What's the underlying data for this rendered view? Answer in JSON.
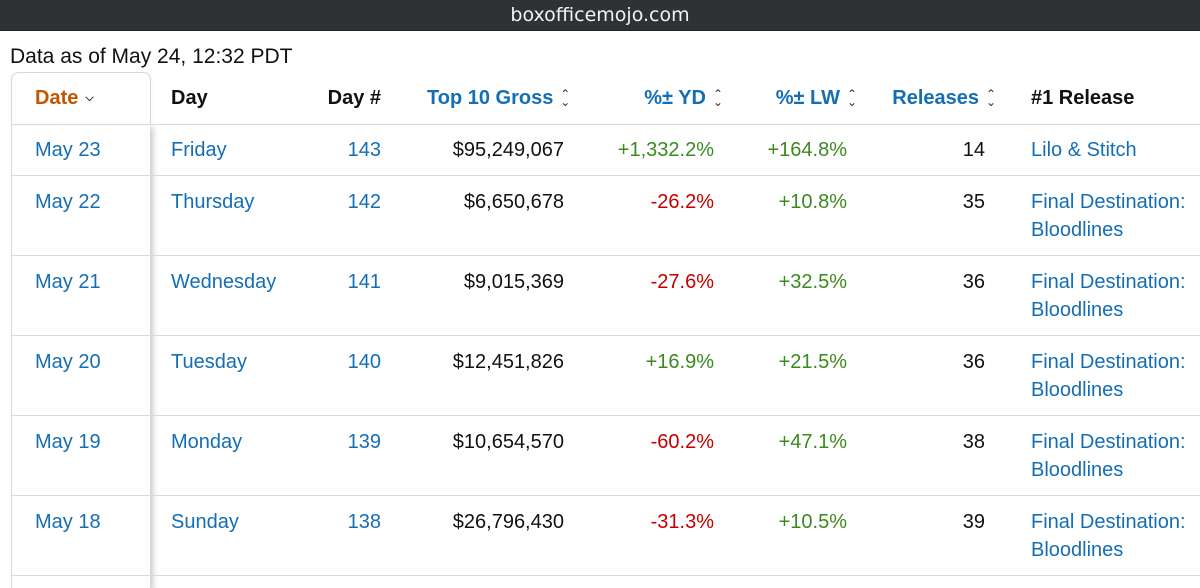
{
  "browser": {
    "url": "boxofficemojo.com"
  },
  "page": {
    "data_as_of": "Data as of May 24, 12:32 PDT"
  },
  "table": {
    "columns": [
      {
        "key": "date",
        "label": "Date"
      },
      {
        "key": "day",
        "label": "Day"
      },
      {
        "key": "day_num",
        "label": "Day #"
      },
      {
        "key": "gross",
        "label": "Top 10 Gross"
      },
      {
        "key": "yd",
        "label": "%± YD"
      },
      {
        "key": "lw",
        "label": "%± LW"
      },
      {
        "key": "releases",
        "label": "Releases"
      },
      {
        "key": "release",
        "label": "#1 Release"
      }
    ],
    "rows": [
      {
        "date": "May 23",
        "day": "Friday",
        "day_num": "143",
        "gross": "$95,249,067",
        "yd": "+1,332.2%",
        "lw": "+164.8%",
        "releases": "14",
        "release": "Lilo & Stitch"
      },
      {
        "date": "May 22",
        "day": "Thursday",
        "day_num": "142",
        "gross": "$6,650,678",
        "yd": "-26.2%",
        "lw": "+10.8%",
        "releases": "35",
        "release": "Final Destination: Bloodlines"
      },
      {
        "date": "May 21",
        "day": "Wednesday",
        "day_num": "141",
        "gross": "$9,015,369",
        "yd": "-27.6%",
        "lw": "+32.5%",
        "releases": "36",
        "release": "Final Destination: Bloodlines"
      },
      {
        "date": "May 20",
        "day": "Tuesday",
        "day_num": "140",
        "gross": "$12,451,826",
        "yd": "+16.9%",
        "lw": "+21.5%",
        "releases": "36",
        "release": "Final Destination: Bloodlines"
      },
      {
        "date": "May 19",
        "day": "Monday",
        "day_num": "139",
        "gross": "$10,654,570",
        "yd": "-60.2%",
        "lw": "+47.1%",
        "releases": "38",
        "release": "Final Destination: Bloodlines"
      },
      {
        "date": "May 18",
        "day": "Sunday",
        "day_num": "138",
        "gross": "$26,796,430",
        "yd": "-31.3%",
        "lw": "+10.5%",
        "releases": "39",
        "release": "Final Destination: Bloodlines"
      }
    ]
  },
  "colors": {
    "link": "#146eb4",
    "active_sort": "#c45500",
    "positive": "#3b8a1f",
    "negative": "#c40000"
  },
  "icons": {
    "date_dropdown": "chevron-down-icon",
    "sortable": "sort-updown-icon"
  }
}
